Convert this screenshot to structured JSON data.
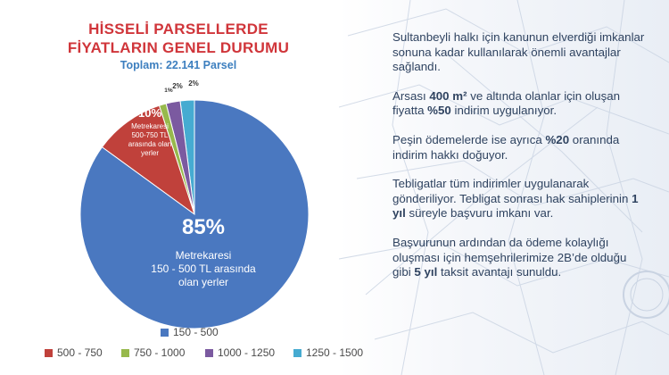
{
  "title_line1": "HİSSELİ PARSELLERDE",
  "title_line2": "FİYATLARIN GENEL DURUMU",
  "subtitle": "Toplam: 22.141 Parsel",
  "chart_data": {
    "type": "pie",
    "title": "HİSSELİ PARSELLERDE FİYATLARIN GENEL DURUMU",
    "subtitle": "Toplam: 22.141 Parsel",
    "categories": [
      "150 - 500",
      "500 - 750",
      "750 - 1000",
      "1000 - 1250",
      "1250 - 1500"
    ],
    "values": [
      85,
      10,
      1,
      2,
      2
    ],
    "slice_labels": [
      "85%",
      "10%",
      "1%",
      "2%",
      "2%"
    ],
    "colors": [
      "#4a78c0",
      "#c0413b",
      "#97b94c",
      "#7b5aa0",
      "#46abd1"
    ],
    "annotations": [
      {
        "slice": "150 - 500",
        "lines": [
          "Metrekaresi",
          "150 - 500 TL arasında",
          "olan yerler"
        ]
      },
      {
        "slice": "500 - 750",
        "lines": [
          "Metrekaresi",
          "500-750 TL",
          "arasında olan",
          "yerler"
        ]
      }
    ],
    "legend_position": "bottom"
  },
  "paragraphs": [
    [
      {
        "t": "Sultanbeyli halkı için kanunun elverdiği imkanlar sonuna kadar kullanılarak önemli avantajlar sağlandı."
      }
    ],
    [
      {
        "t": "Arsası "
      },
      {
        "t": "400 m²",
        "b": true
      },
      {
        "t": " ve altında olanlar için oluşan fiyatta "
      },
      {
        "t": "%50",
        "b": true
      },
      {
        "t": " indirim uygulanıyor."
      }
    ],
    [
      {
        "t": "Peşin ödemelerde ise ayrıca "
      },
      {
        "t": "%20",
        "b": true
      },
      {
        "t": " oranında indirim hakkı doğuyor."
      }
    ],
    [
      {
        "t": "Tebligatlar tüm indirimler uygulanarak gönderiliyor. Tebligat sonrası hak sahiplerinin "
      },
      {
        "t": "1 yıl",
        "b": true
      },
      {
        "t": " süreyle başvuru imkanı var."
      }
    ],
    [
      {
        "t": "Başvurunun ardından da ödeme kolaylığı oluşması için hemşehrilerimize 2B’de olduğu gibi "
      },
      {
        "t": "5 yıl",
        "b": true
      },
      {
        "t": " taksit avantajı sunuldu."
      }
    ]
  ]
}
